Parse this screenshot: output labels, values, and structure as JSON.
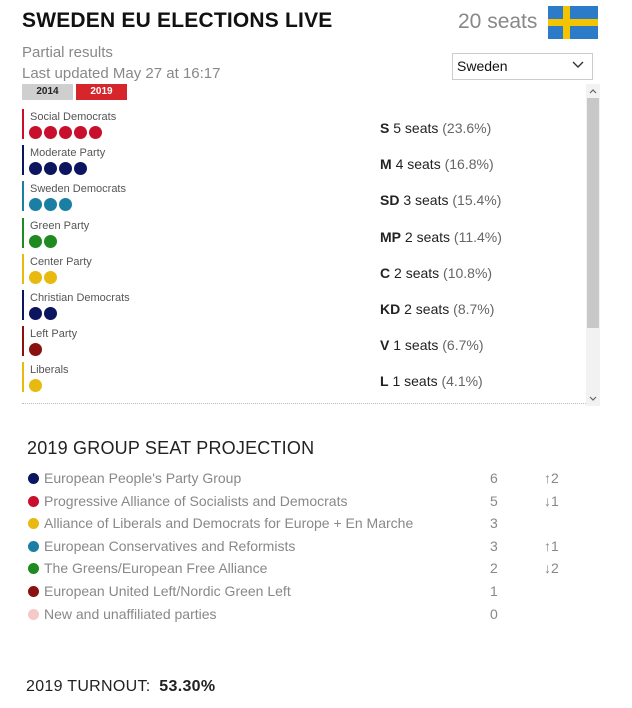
{
  "header": {
    "title": "SWEDEN EU ELECTIONS LIVE",
    "seats_total": "20 seats",
    "flag_icon": "sweden-flag",
    "subtitle": "Partial results",
    "updated": "Last updated May 27 at 16:17"
  },
  "year_tabs": [
    {
      "label": "2014",
      "active": false
    },
    {
      "label": "2019",
      "active": true
    }
  ],
  "country_select": {
    "value": "Sweden",
    "icon": "chevron-down-icon"
  },
  "parties": [
    {
      "name": "Social Democrats",
      "abbr": "S",
      "seats_text": "5 seats",
      "pct": "(23.6%)",
      "seats": 5,
      "color": "#c8102e"
    },
    {
      "name": "Moderate Party",
      "abbr": "M",
      "seats_text": "4 seats",
      "pct": "(16.8%)",
      "seats": 4,
      "color": "#0b1560"
    },
    {
      "name": "Sweden Democrats",
      "abbr": "SD",
      "seats_text": "3 seats",
      "pct": "(15.4%)",
      "seats": 3,
      "color": "#1b7ea3"
    },
    {
      "name": "Green Party",
      "abbr": "MP",
      "seats_text": "2 seats",
      "pct": "(11.4%)",
      "seats": 2,
      "color": "#1f8a1f"
    },
    {
      "name": "Center Party",
      "abbr": "C",
      "seats_text": "2 seats",
      "pct": "(10.8%)",
      "seats": 2,
      "color": "#e8b90f"
    },
    {
      "name": "Christian Democrats",
      "abbr": "KD",
      "seats_text": "2 seats",
      "pct": "(8.7%)",
      "seats": 2,
      "color": "#0b1560"
    },
    {
      "name": "Left Party",
      "abbr": "V",
      "seats_text": "1 seats",
      "pct": "(6.7%)",
      "seats": 1,
      "color": "#8b1010"
    },
    {
      "name": "Liberals",
      "abbr": "L",
      "seats_text": "1 seats",
      "pct": "(4.1%)",
      "seats": 1,
      "color": "#e8b90f"
    }
  ],
  "projection": {
    "title": "2019 GROUP SEAT PROJECTION",
    "groups": [
      {
        "name": "European People's Party Group",
        "seats": "6",
        "change": "↑2",
        "color": "#0b1560"
      },
      {
        "name": "Progressive Alliance of Socialists and Democrats",
        "seats": "5",
        "change": "↓1",
        "color": "#c8102e"
      },
      {
        "name": "Alliance of Liberals and Democrats for Europe + En Marche",
        "seats": "3",
        "change": "",
        "color": "#e8b90f"
      },
      {
        "name": "European Conservatives and Reformists",
        "seats": "3",
        "change": "↑1",
        "color": "#1b7ea3"
      },
      {
        "name": "The Greens/European Free Alliance",
        "seats": "2",
        "change": "↓2",
        "color": "#1f8a1f"
      },
      {
        "name": "European United Left/Nordic Green Left",
        "seats": "1",
        "change": "",
        "color": "#8b1010"
      },
      {
        "name": "New and unaffiliated parties",
        "seats": "0",
        "change": "",
        "color": "#f6c9c9"
      }
    ]
  },
  "turnout": {
    "label": "2019 TURNOUT:",
    "value": "53.30%"
  }
}
